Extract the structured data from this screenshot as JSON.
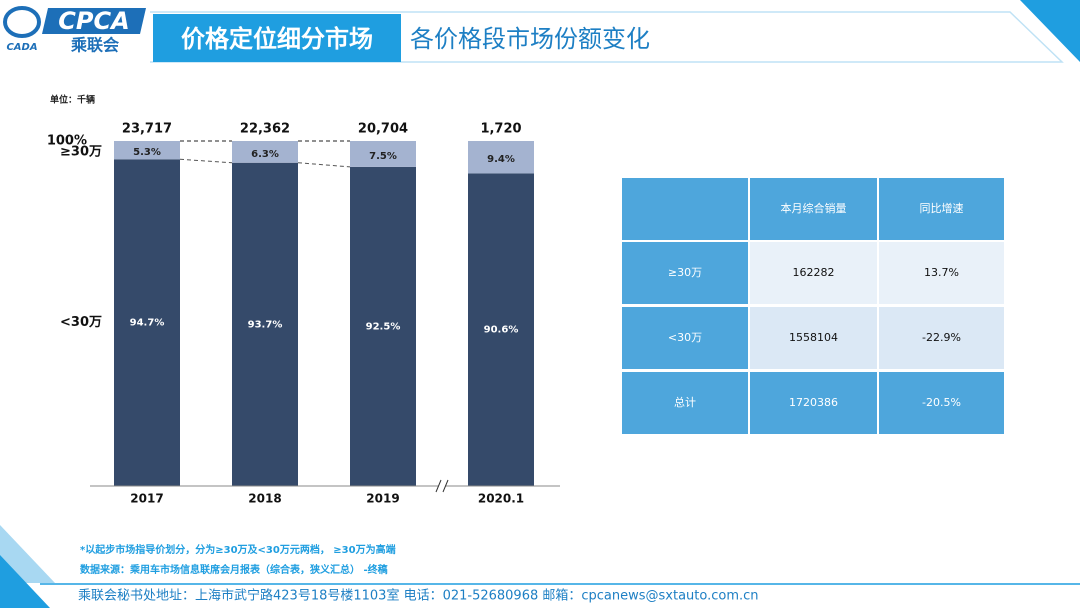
{
  "header": {
    "logo_mark": "CADA",
    "logo": "CPCA",
    "logo_cn": "乘联会",
    "title": "价格定位细分市场",
    "subtitle": "各价格段市场份额变化"
  },
  "chart_data": {
    "type": "bar",
    "stacked": true,
    "unit": "单位：千辆",
    "categories": [
      "2017",
      "2018",
      "2019",
      "2020.1"
    ],
    "totals": {
      "values": [
        23717,
        22362,
        20704,
        1720
      ],
      "value_labels": [
        "23,717",
        "22,362",
        "20,704",
        "1,720"
      ]
    },
    "series": [
      {
        "name": "<30万",
        "color": "#354a6a",
        "values": [
          94.7,
          93.7,
          92.5,
          90.6
        ],
        "value_labels": [
          "94.7%",
          "93.7%",
          "92.5%",
          "90.6%"
        ]
      },
      {
        "name": "≥30万",
        "color": "#a4b3d0",
        "values": [
          5.3,
          6.3,
          7.5,
          9.4
        ],
        "value_labels": [
          "5.3%",
          "6.3%",
          "7.5%",
          "9.4%"
        ]
      }
    ],
    "ylim": [
      0,
      100
    ],
    "yticks": [
      {
        "value": 100,
        "label": "100%"
      }
    ]
  },
  "table": {
    "header": [
      "本月综合销量",
      "同比增速"
    ],
    "rows": [
      [
        "≥30万",
        "162282",
        "13.7%"
      ],
      [
        "<30万",
        "1558104",
        "-22.9%"
      ],
      [
        "总计",
        "1720386",
        "-20.5%"
      ]
    ]
  },
  "notes": [
    "*以起步市场指导价划分，分为≥30万及<30万元两档，   ≥30万为高端",
    "数据来源：乘用车市场信息联席会月报表（综合表，狭义汇总）  -终稿"
  ],
  "footer": "乘联会秘书处地址：上海市武宁路423号18号楼1103室  电话：021-52680968  邮箱：cpcanews@sxtauto.com.cn"
}
